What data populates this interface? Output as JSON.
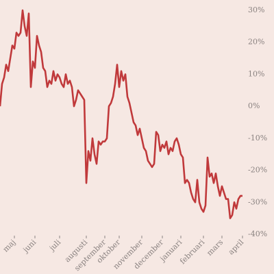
{
  "chart_data": {
    "type": "line",
    "categories": [
      null,
      null,
      null,
      null,
      null,
      null,
      null,
      "maj",
      null,
      null,
      null,
      null,
      null,
      null,
      null,
      null,
      null,
      "juni",
      null,
      null,
      null,
      null,
      null,
      null,
      null,
      null,
      null,
      null,
      null,
      "juli",
      null,
      null,
      null,
      null,
      null,
      null,
      null,
      null,
      null,
      null,
      null,
      null,
      "augusti",
      null,
      null,
      null,
      null,
      null,
      null,
      null,
      null,
      "september",
      null,
      null,
      null,
      null,
      null,
      null,
      "oktober",
      null,
      null,
      null,
      null,
      null,
      null,
      null,
      null,
      null,
      null,
      "november",
      null,
      null,
      null,
      null,
      null,
      null,
      null,
      null,
      null,
      "december",
      null,
      null,
      null,
      null,
      null,
      null,
      null,
      null,
      "januari",
      null,
      null,
      null,
      null,
      null,
      null,
      null,
      null,
      null,
      null,
      "februari",
      null,
      null,
      null,
      null,
      null,
      null,
      null,
      null,
      "mars",
      null,
      null,
      null,
      null,
      null,
      null,
      null,
      null,
      null,
      "april"
    ],
    "series": [
      {
        "color": "#c0393b",
        "values": [
          0,
          7,
          9,
          13,
          11,
          15,
          19,
          18,
          23,
          22,
          23,
          30,
          25,
          22,
          29,
          6,
          14,
          12,
          22,
          19,
          17,
          12,
          11,
          6,
          8,
          7,
          11,
          8,
          10,
          9,
          7,
          6,
          10,
          7,
          8,
          6,
          0,
          2,
          5,
          4,
          3,
          2,
          -24,
          -14,
          -17,
          -10,
          -15,
          -18,
          -11,
          -12,
          -11,
          -11,
          -10,
          0,
          1,
          3,
          7,
          13,
          6,
          11,
          8,
          10,
          3,
          1,
          -2,
          -5,
          -6,
          -9,
          -7,
          -10,
          -13,
          -14,
          -17,
          -18,
          -19,
          -18,
          -8,
          -9,
          -14,
          -12,
          -13,
          -11,
          -15,
          -13,
          -14,
          -11,
          -10,
          -12,
          -15,
          -16,
          -24,
          -23,
          -24,
          -27,
          -29,
          -30,
          -23,
          -30,
          -32,
          -33,
          -31,
          -16,
          -22,
          -21,
          -24,
          -21,
          -25,
          -28,
          -25,
          -27,
          -29,
          -29,
          -35,
          -34,
          -30,
          -32,
          -29,
          -28,
          -28
        ]
      }
    ],
    "ylim": [
      -40,
      30
    ],
    "yticks": [
      {
        "value": 30,
        "label": "30%"
      },
      {
        "value": 20,
        "label": "20%"
      },
      {
        "value": 10,
        "label": "10%"
      },
      {
        "value": 0,
        "label": "0%"
      },
      {
        "value": -10,
        "label": "-10%"
      },
      {
        "value": -20,
        "label": "-20%"
      },
      {
        "value": -30,
        "label": "-30%"
      },
      {
        "value": -40,
        "label": "-40%"
      }
    ],
    "yaxis_side": "right",
    "grid": false
  }
}
